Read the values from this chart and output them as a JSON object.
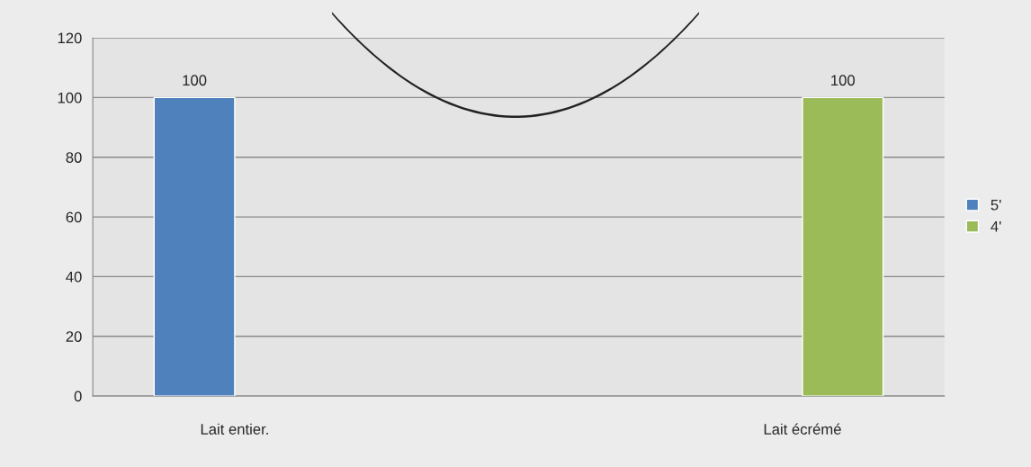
{
  "chart_data": {
    "type": "bar",
    "categories": [
      "Lait entier.",
      null,
      "Lait écrémé"
    ],
    "series": [
      {
        "name": "5'",
        "color": "#4f81bd",
        "values": [
          100,
          null,
          null
        ]
      },
      {
        "name": "4'",
        "color": "#9bbb59",
        "values": [
          null,
          null,
          100
        ]
      }
    ],
    "ylim": [
      0,
      120
    ],
    "yticks": [
      0,
      20,
      40,
      60,
      80,
      100,
      120
    ],
    "grid": "y",
    "legend": "right",
    "data_labels": true
  }
}
